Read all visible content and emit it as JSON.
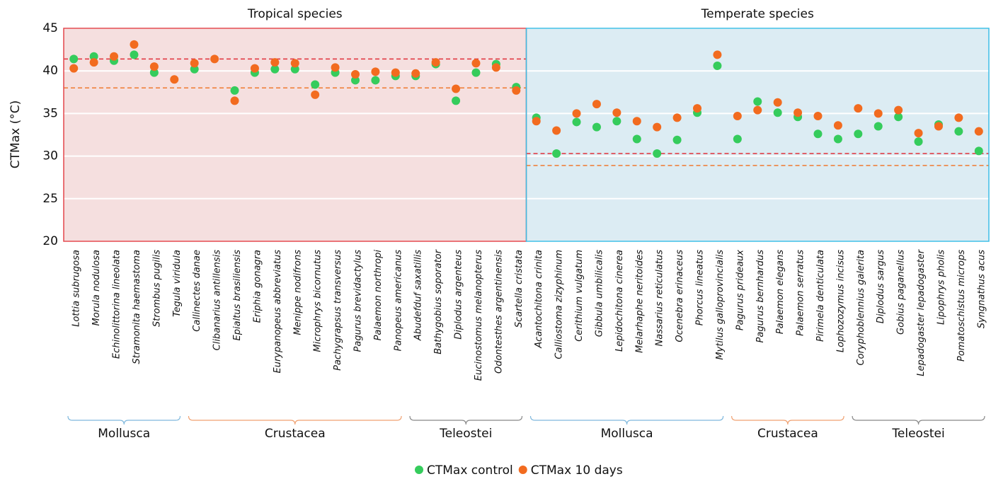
{
  "chart_data": {
    "type": "dot",
    "ylabel": "CTMax (°C)",
    "ylim": [
      20,
      45
    ],
    "yticks": [
      20,
      25,
      30,
      35,
      40,
      45
    ],
    "grid": true,
    "legend": "bottom",
    "series": [
      {
        "name": "CTMax control",
        "color": "#35cc5c",
        "values": [
          41.4,
          41.7,
          41.2,
          41.9,
          39.8,
          null,
          40.2,
          null,
          37.7,
          39.8,
          40.2,
          40.2,
          38.4,
          39.8,
          38.9,
          38.9,
          39.4,
          39.4,
          40.8,
          36.5,
          39.8,
          40.8,
          38.1,
          34.5,
          30.3,
          34.0,
          33.4,
          34.1,
          32.0,
          30.3,
          31.9,
          35.1,
          40.6,
          32.0,
          36.4,
          35.1,
          34.6,
          32.6,
          32.0,
          32.6,
          33.5,
          34.6,
          31.7,
          33.7,
          32.9,
          30.6
        ]
      },
      {
        "name": "CTMax 10 days",
        "color": "#f26b1f",
        "values": [
          40.3,
          41.0,
          41.7,
          43.1,
          40.5,
          39.0,
          40.9,
          41.4,
          36.5,
          40.3,
          41.0,
          40.9,
          37.2,
          40.4,
          39.6,
          39.9,
          39.8,
          39.7,
          41.0,
          37.9,
          40.9,
          40.4,
          37.7,
          34.1,
          33.0,
          35.0,
          36.1,
          35.1,
          34.1,
          33.4,
          34.5,
          35.6,
          41.9,
          34.7,
          35.4,
          36.3,
          35.1,
          34.7,
          33.6,
          35.6,
          35.0,
          35.4,
          32.7,
          33.5,
          34.5,
          32.9
        ]
      }
    ],
    "panels": [
      {
        "title": "Tropical species",
        "background": "#f5dfdf",
        "border": "#e3464c",
        "ref_lines": [
          {
            "value": 41.4,
            "color": "#e0303a"
          },
          {
            "value": 38.0,
            "color": "#f07a30"
          }
        ],
        "groups": [
          {
            "label": "Mollusca",
            "color": "#7fb8dd",
            "categories": [
              "Lottia subrugosa",
              "Morula nodulosa",
              "Echinolittorina lineolata",
              "Stramonita haemastoma",
              "Strombus pugilis",
              "Tegula viridula"
            ]
          },
          {
            "label": "Crustacea",
            "color": "#f0a070",
            "categories": [
              "Callinectes danae",
              "Clibanarius antillensis",
              "Epialtus brasiliensis",
              "Eriphia gonagra",
              "Eurypanopeus abbreviatus",
              "Menippe nodifrons",
              "Microphrys bicornutus",
              "Pachygrapsus transversus",
              "Pagurus brevidactylus",
              "Palaemon northropi",
              "Panopeus americanus"
            ]
          },
          {
            "label": "Teleostei",
            "color": "#888888",
            "categories": [
              "Abudefduf saxatillis",
              "Bathygobius soporator",
              "Diplodus argenteus",
              "Eucinostomus melanopterus",
              "Odontesthes argentinensis",
              "Scartella cristata"
            ]
          }
        ]
      },
      {
        "title": "Temperate species",
        "background": "#dcecf3",
        "border": "#3bbde6",
        "ref_lines": [
          {
            "value": 30.3,
            "color": "#e0303a"
          },
          {
            "value": 28.9,
            "color": "#f07a30"
          }
        ],
        "groups": [
          {
            "label": "Mollusca",
            "color": "#7fb8dd",
            "categories": [
              "Acantochitona crinita",
              "Calliostoma zizyphinum",
              "Cerithium vulgatum",
              "Gibbula umbilicalis",
              "Lepidochitona cinerea",
              "Melarhaphe neritoides",
              "Nassarius reticulatus",
              "Ocenebra erinaceus",
              "Phorcus lineatus",
              "Mytilus galloprovincialis"
            ]
          },
          {
            "label": "Crustacea",
            "color": "#f0a070",
            "categories": [
              "Pagurus prideaux",
              "Pagurus bernhardus",
              "Palaemon elegans",
              "Palaemon serratus",
              "Pirimela denticulata",
              "Lophozozymus incisus"
            ]
          },
          {
            "label": "Teleostei",
            "color": "#888888",
            "categories": [
              "Coryphoblennius galerita",
              "Diplodus sargus",
              "Gobius paganellus",
              "Lepadogaster lepadogaster",
              "Lipophrys pholis",
              "Pomatoschistus microps",
              "Syngnathus acus"
            ]
          }
        ]
      }
    ]
  }
}
